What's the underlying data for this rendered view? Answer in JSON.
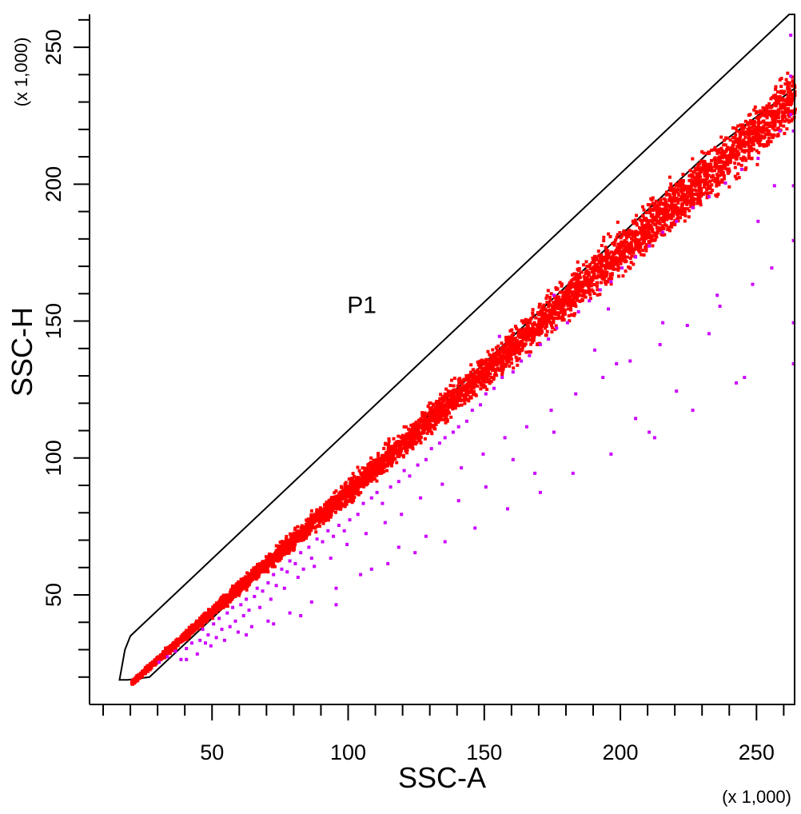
{
  "chart_data": {
    "type": "scatter",
    "title": "",
    "xlabel": "SSC-A",
    "ylabel": "SSC-H",
    "x_multiplier": "(x 1,000)",
    "y_multiplier": "(x 1,000)",
    "xlim": [
      5,
      264
    ],
    "ylim": [
      10,
      262
    ],
    "x_ticks": [
      50,
      100,
      150,
      200,
      250
    ],
    "y_ticks": [
      50,
      100,
      150,
      200,
      250
    ],
    "x_minor_step": 10,
    "y_minor_step": 10,
    "grid": false,
    "gate": {
      "name": "P1",
      "label_position": [
        105,
        153
      ],
      "polygon": [
        [
          20,
          35
        ],
        [
          262,
          262
        ],
        [
          264,
          262
        ],
        [
          264,
          235
        ],
        [
          233,
          212
        ],
        [
          27,
          20
        ],
        [
          19,
          19
        ],
        [
          16,
          19
        ],
        [
          18,
          30
        ]
      ]
    },
    "series": [
      {
        "name": "P1",
        "color": "#ff0000",
        "slope": 0.877,
        "x_range": [
          20,
          264
        ],
        "scatter": 0.035,
        "count": 5500
      },
      {
        "name": "",
        "color": "#cc00ff",
        "points": [
          [
            30,
            26
          ],
          [
            33,
            28
          ],
          [
            36,
            30
          ],
          [
            38,
            27
          ],
          [
            40,
            31
          ],
          [
            42,
            33
          ],
          [
            45,
            34
          ],
          [
            46,
            38
          ],
          [
            48,
            36
          ],
          [
            50,
            40
          ],
          [
            52,
            42
          ],
          [
            53,
            38
          ],
          [
            55,
            44
          ],
          [
            57,
            46
          ],
          [
            58,
            41
          ],
          [
            60,
            47
          ],
          [
            62,
            49
          ],
          [
            63,
            45
          ],
          [
            65,
            50
          ],
          [
            66,
            53
          ],
          [
            68,
            52
          ],
          [
            70,
            55
          ],
          [
            72,
            58
          ],
          [
            73,
            54
          ],
          [
            75,
            60
          ],
          [
            77,
            59
          ],
          [
            78,
            63
          ],
          [
            80,
            62
          ],
          [
            82,
            66
          ],
          [
            83,
            60
          ],
          [
            85,
            68
          ],
          [
            86,
            64
          ],
          [
            88,
            71
          ],
          [
            90,
            70
          ],
          [
            92,
            74
          ],
          [
            94,
            72
          ],
          [
            96,
            76
          ],
          [
            98,
            74
          ],
          [
            100,
            78
          ],
          [
            103,
            80
          ],
          [
            105,
            84
          ],
          [
            108,
            86
          ],
          [
            110,
            88
          ],
          [
            112,
            84
          ],
          [
            115,
            90
          ],
          [
            118,
            92
          ],
          [
            120,
            96
          ],
          [
            122,
            94
          ],
          [
            125,
            98
          ],
          [
            128,
            100
          ],
          [
            130,
            104
          ],
          [
            133,
            106
          ],
          [
            135,
            108
          ],
          [
            138,
            110
          ],
          [
            140,
            112
          ],
          [
            143,
            114
          ],
          [
            145,
            118
          ],
          [
            148,
            120
          ],
          [
            150,
            124
          ],
          [
            153,
            126
          ],
          [
            156,
            130
          ],
          [
            160,
            132
          ],
          [
            163,
            136
          ],
          [
            166,
            138
          ],
          [
            170,
            142
          ],
          [
            173,
            144
          ],
          [
            176,
            148
          ],
          [
            180,
            150
          ],
          [
            184,
            154
          ],
          [
            188,
            158
          ],
          [
            192,
            162
          ],
          [
            196,
            165
          ],
          [
            200,
            170
          ],
          [
            205,
            174
          ],
          [
            210,
            178
          ],
          [
            215,
            183
          ],
          [
            220,
            187
          ],
          [
            226,
            192
          ],
          [
            232,
            196
          ],
          [
            238,
            201
          ],
          [
            244,
            206
          ],
          [
            250,
            210
          ],
          [
            258,
            220
          ],
          [
            262,
            226
          ],
          [
            47,
            33
          ],
          [
            51,
            35
          ],
          [
            56,
            39
          ],
          [
            61,
            43
          ],
          [
            67,
            46
          ],
          [
            71,
            49
          ],
          [
            76,
            53
          ],
          [
            81,
            57
          ],
          [
            87,
            61
          ],
          [
            93,
            64
          ],
          [
            99,
            69
          ],
          [
            106,
            73
          ],
          [
            113,
            77
          ],
          [
            119,
            80
          ],
          [
            126,
            86
          ],
          [
            134,
            91
          ],
          [
            141,
            97
          ],
          [
            149,
            102
          ],
          [
            157,
            108
          ],
          [
            165,
            112
          ],
          [
            174,
            118
          ],
          [
            183,
            124
          ],
          [
            193,
            130
          ],
          [
            203,
            136
          ],
          [
            214,
            142
          ],
          [
            224,
            149
          ],
          [
            236,
            156
          ],
          [
            248,
            164
          ],
          [
            40,
            27
          ],
          [
            44,
            29
          ],
          [
            49,
            32
          ],
          [
            54,
            34
          ],
          [
            59,
            37
          ],
          [
            64,
            39
          ],
          [
            70,
            41
          ],
          [
            78,
            44
          ],
          [
            86,
            48
          ],
          [
            95,
            53
          ],
          [
            104,
            58
          ],
          [
            114,
            62
          ],
          [
            124,
            66
          ],
          [
            135,
            70
          ],
          [
            146,
            75
          ],
          [
            158,
            82
          ],
          [
            170,
            88
          ],
          [
            182,
            95
          ],
          [
            196,
            102
          ],
          [
            210,
            110
          ],
          [
            226,
            118
          ],
          [
            242,
            128
          ],
          [
            160,
            100
          ],
          [
            175,
            110
          ],
          [
            190,
            140
          ],
          [
            205,
            115
          ],
          [
            220,
            125
          ],
          [
            235,
            160
          ],
          [
            255,
            170
          ],
          [
            263,
            200
          ],
          [
            263,
            180
          ],
          [
            263,
            150
          ],
          [
            263,
            135
          ],
          [
            245,
            130
          ],
          [
            212,
            108
          ],
          [
            198,
            135
          ],
          [
            168,
            95
          ],
          [
            150,
            90
          ],
          [
            140,
            85
          ],
          [
            128,
            72
          ],
          [
            118,
            68
          ],
          [
            108,
            60
          ],
          [
            95,
            47
          ],
          [
            82,
            43
          ],
          [
            72,
            40
          ],
          [
            62,
            36
          ],
          [
            155,
            145
          ],
          [
            175,
            160
          ],
          [
            195,
            155
          ],
          [
            215,
            150
          ],
          [
            232,
            146
          ],
          [
            250,
            187
          ],
          [
            256,
            200
          ],
          [
            262,
            240
          ],
          [
            262,
            255
          ],
          [
            263,
            220
          ]
        ]
      }
    ]
  }
}
